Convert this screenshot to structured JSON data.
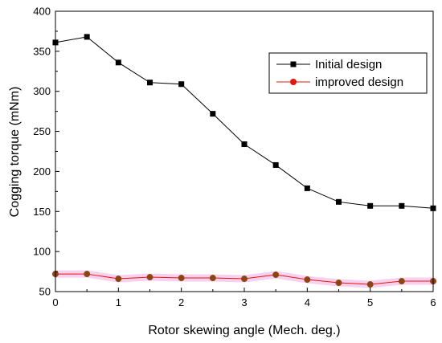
{
  "chart_data": {
    "type": "line",
    "title": "",
    "xlabel": "Rotor skewing angle (Mech. deg.)",
    "ylabel": "Cogging torque (mNm)",
    "xlim": [
      0,
      6
    ],
    "ylim": [
      50,
      400
    ],
    "x_ticks": [
      0,
      1,
      2,
      3,
      4,
      5,
      6
    ],
    "y_ticks": [
      50,
      100,
      150,
      200,
      250,
      300,
      350,
      400
    ],
    "grid": false,
    "legend_position": "top-right",
    "x": [
      0,
      0.5,
      1,
      1.5,
      2,
      2.5,
      3,
      3.5,
      4,
      4.5,
      5,
      5.5,
      6
    ],
    "series": [
      {
        "name": "Initial design",
        "color": "#000000",
        "marker": "square",
        "values": [
          361,
          368,
          336,
          311,
          309,
          272,
          234,
          208,
          179,
          162,
          157,
          157,
          154
        ]
      },
      {
        "name": "improved design",
        "color": "#e8140c",
        "marker": "circle",
        "values": [
          72,
          72,
          66,
          68,
          67,
          67,
          66,
          71,
          65,
          61,
          59,
          63,
          63
        ]
      }
    ]
  }
}
